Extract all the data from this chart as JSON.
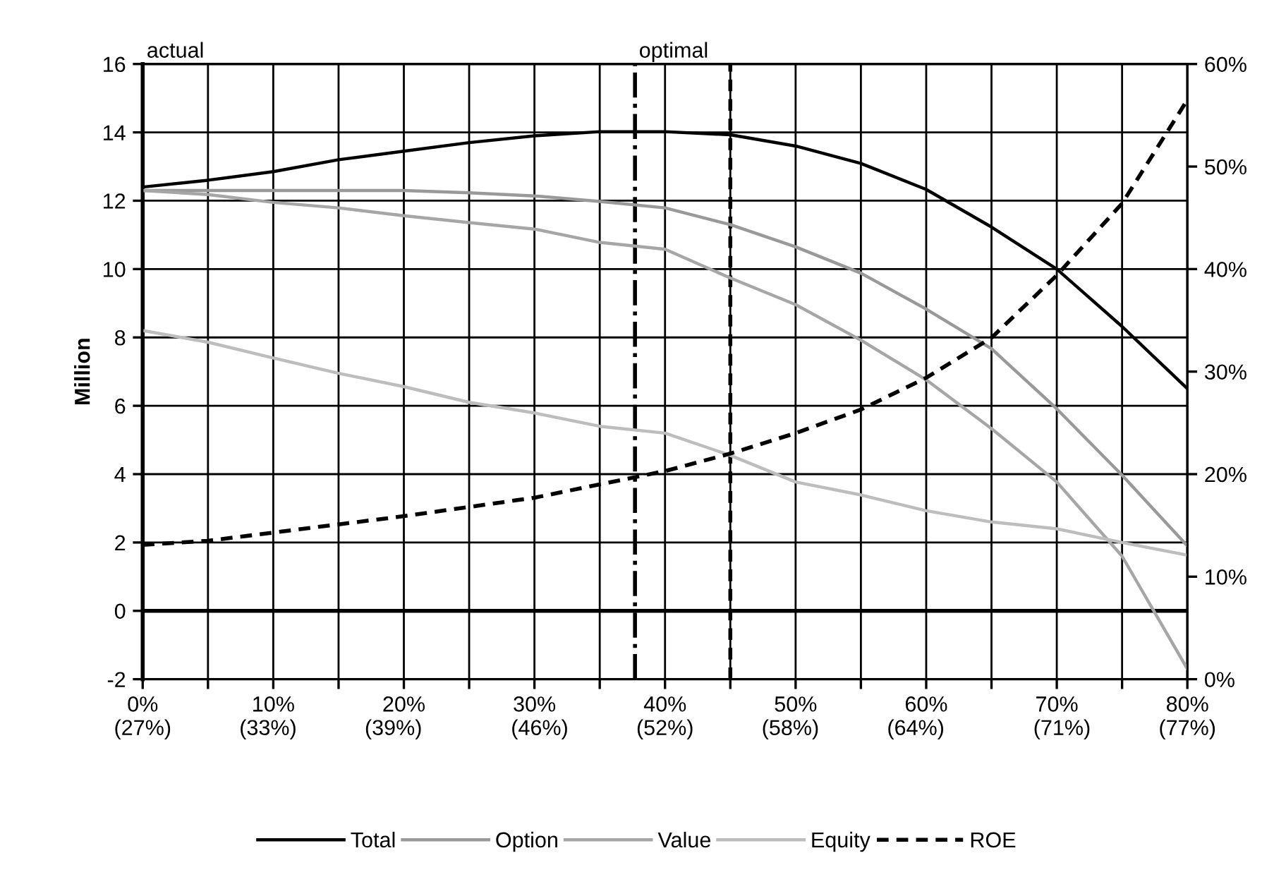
{
  "chart_data": {
    "type": "line",
    "x": [
      0,
      5,
      10,
      15,
      20,
      25,
      30,
      35,
      40,
      45,
      50,
      55,
      60,
      65,
      70,
      75,
      80
    ],
    "series": [
      {
        "name": "Total",
        "color": "#000000",
        "line_style": "solid",
        "values": [
          12.4,
          12.6,
          12.85,
          13.2,
          13.45,
          13.7,
          13.9,
          14.02,
          14.02,
          13.93,
          13.6,
          13.09,
          12.33,
          11.23,
          10.0,
          8.32,
          6.5
        ]
      },
      {
        "name": "Option",
        "color": "#999999",
        "line_style": "solid",
        "values": [
          12.3,
          12.3,
          12.3,
          12.3,
          12.3,
          12.23,
          12.14,
          11.98,
          11.79,
          11.3,
          10.65,
          9.88,
          8.83,
          7.67,
          5.91,
          3.97,
          1.9
        ]
      },
      {
        "name": "Value",
        "color": "#a6a6a6",
        "line_style": "solid",
        "values": [
          12.3,
          12.18,
          11.95,
          11.79,
          11.56,
          11.36,
          11.17,
          10.78,
          10.58,
          9.74,
          8.96,
          7.92,
          6.76,
          5.33,
          3.77,
          1.6,
          -1.7
        ]
      },
      {
        "name": "Equity",
        "color": "#bdbdbd",
        "line_style": "solid",
        "values": [
          8.2,
          7.86,
          7.4,
          6.95,
          6.56,
          6.1,
          5.79,
          5.4,
          5.2,
          4.55,
          3.77,
          3.39,
          2.93,
          2.6,
          2.4,
          2.0,
          1.63
        ]
      },
      {
        "name": "ROE",
        "color": "#000000",
        "line_style": "dashed",
        "axis": "y2",
        "values": [
          13.1,
          13.5,
          14.3,
          15.1,
          15.9,
          16.8,
          17.7,
          19.0,
          20.3,
          22.0,
          24.0,
          26.3,
          29.4,
          33.3,
          39.4,
          46.4,
          56.5
        ]
      }
    ],
    "ylabel": "Million",
    "xlim": [
      0,
      80
    ],
    "xticks": [
      {
        "value": 0,
        "label": "0%"
      },
      {
        "value": 5,
        "label": null
      },
      {
        "value": 10,
        "label": "10%"
      },
      {
        "value": 15,
        "label": null
      },
      {
        "value": 20,
        "label": "20%"
      },
      {
        "value": 25,
        "label": null
      },
      {
        "value": 30,
        "label": "30%"
      },
      {
        "value": 35,
        "label": null
      },
      {
        "value": 40,
        "label": "40%"
      },
      {
        "value": 45,
        "label": null
      },
      {
        "value": 50,
        "label": "50%"
      },
      {
        "value": 55,
        "label": null
      },
      {
        "value": 60,
        "label": "60%"
      },
      {
        "value": 65,
        "label": null
      },
      {
        "value": 70,
        "label": "70%"
      },
      {
        "value": 75,
        "label": null
      },
      {
        "value": 80,
        "label": "80%"
      }
    ],
    "x2lim": [
      27,
      77
    ],
    "x2ticks": [
      {
        "value": 27,
        "label": "(27%)"
      },
      {
        "value": 33,
        "label": "(33%)"
      },
      {
        "value": 39,
        "label": "(39%)"
      },
      {
        "value": 46,
        "label": "(46%)"
      },
      {
        "value": 52,
        "label": "(52%)"
      },
      {
        "value": 58,
        "label": "(58%)"
      },
      {
        "value": 64,
        "label": "(64%)"
      },
      {
        "value": 71,
        "label": "(71%)"
      },
      {
        "value": 77,
        "label": "(77%)"
      }
    ],
    "ylim": [
      -2,
      16
    ],
    "yticks": [
      -2,
      0,
      2,
      4,
      6,
      8,
      10,
      12,
      14,
      16
    ],
    "y2lim": [
      0,
      60
    ],
    "y2ticks": [
      {
        "value": 0,
        "label": "0%"
      },
      {
        "value": 10,
        "label": "10%"
      },
      {
        "value": 20,
        "label": "20%"
      },
      {
        "value": 30,
        "label": "30%"
      },
      {
        "value": 40,
        "label": "40%"
      },
      {
        "value": 50,
        "label": "50%"
      },
      {
        "value": 60,
        "label": "60%"
      }
    ],
    "ref_lines": [
      {
        "axis": "y",
        "value": 0,
        "color": "#000000",
        "line_style": "solid"
      },
      {
        "axis": "x",
        "value": 37.7,
        "color": "#000000",
        "line_style": "dashdot",
        "label": "optimal"
      },
      {
        "axis": "x",
        "value": 45,
        "color": "#000000",
        "line_style": "dashed"
      }
    ],
    "annotations": [
      "actual"
    ],
    "grid": true,
    "legend": "bottom",
    "marker": "none"
  }
}
